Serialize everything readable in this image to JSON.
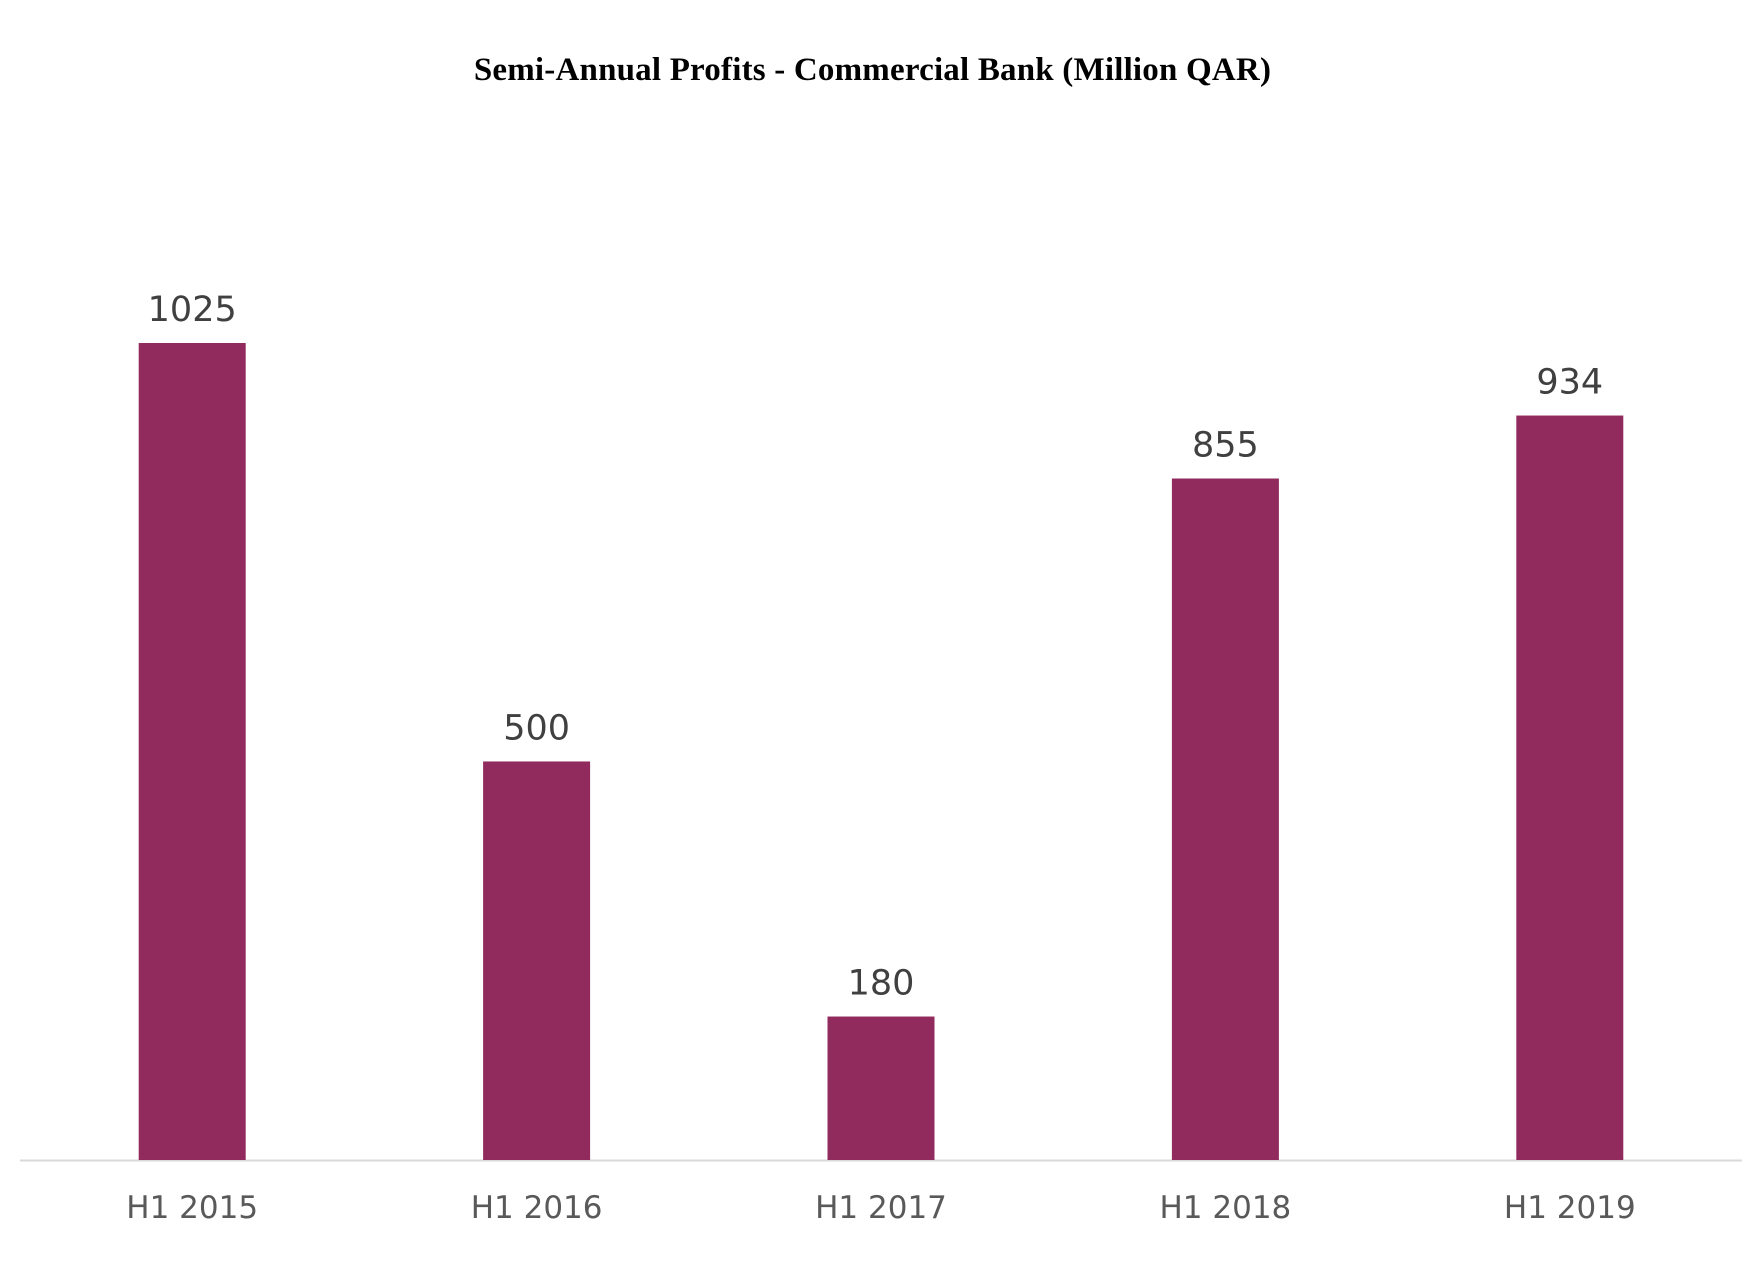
{
  "chart_data": {
    "type": "bar",
    "title": "Semi-Annual Profits - Commercial Bank (Million QAR)",
    "categories": [
      "H1 2015",
      "H1 2016",
      "H1 2017",
      "H1 2018",
      "H1 2019"
    ],
    "values": [
      1025,
      500,
      180,
      855,
      934
    ],
    "data_labels": [
      "1025",
      "500",
      "180",
      "855",
      "934"
    ],
    "xlabel": "",
    "ylabel": "",
    "ylim": [
      0,
      1025
    ],
    "grid": false,
    "legend": "none",
    "colors": {
      "bar": "#922b5d",
      "axis": "#d9d9d9",
      "tick_label": "#595959",
      "data_label": "#404040"
    }
  }
}
